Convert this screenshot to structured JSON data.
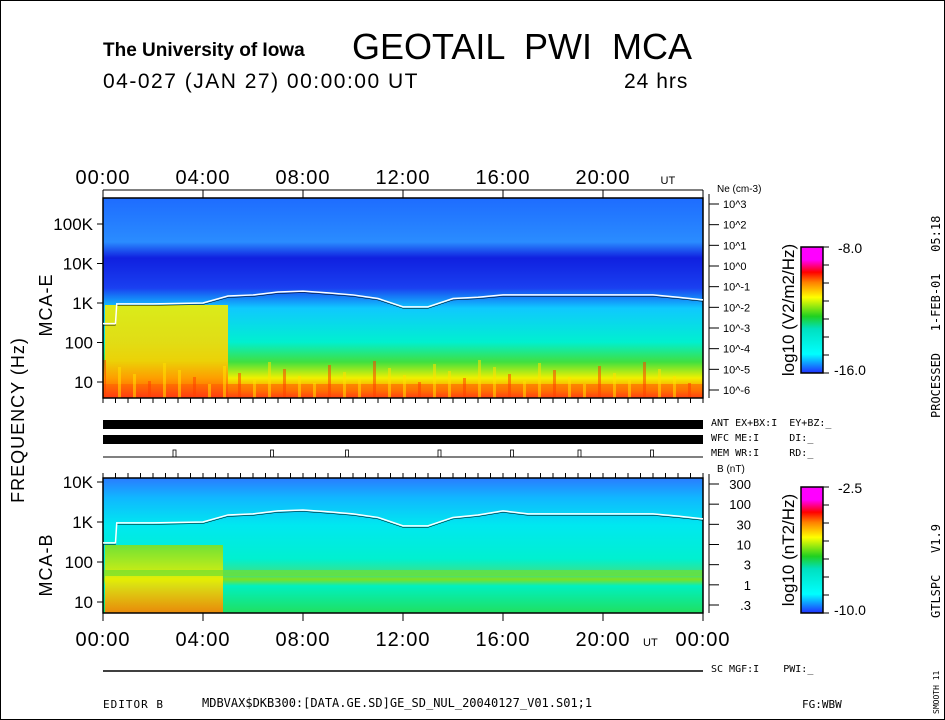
{
  "header": {
    "institution": "The University of Iowa",
    "title": "GEOTAIL  PWI  MCA",
    "date_line": "04-027 (JAN 27) 00:00:00 UT",
    "duration": "24 hrs"
  },
  "side": {
    "processed": "PROCESSED   1-FEB-01   05:18",
    "version": "GTLSPC   V1.9",
    "smooth": "SMOOTH 11"
  },
  "footer": {
    "editor": "EDITOR B",
    "file": "MDBVAX$DKB300:[DATA.GE.SD]GE_SD_NUL_20040127_V01.S01;1",
    "fg": "FG:WBW"
  },
  "status": {
    "ant": "ANT EX+BX:I  EY+BZ:_",
    "wfc": "WFC ME:I     DI:_",
    "mem": "MEM WR:I     RD:_",
    "sc": "SC MGF:I    PWI:_"
  },
  "chart_data": {
    "type": "heatmap",
    "x_unit": "UT",
    "x_ticks_hours": [
      0,
      4,
      8,
      12,
      16,
      20,
      24
    ],
    "x_tick_labels_top": [
      "00:00",
      "04:00",
      "08:00",
      "12:00",
      "16:00",
      "20:00"
    ],
    "x_tick_labels_bottom": [
      "00:00",
      "04:00",
      "08:00",
      "12:00",
      "16:00",
      "20:00",
      "00:00"
    ],
    "ut_label": "UT",
    "ylabel": "FREQUENCY (Hz)",
    "panels": [
      {
        "name": "MCA-E",
        "label": "MCA-E",
        "freq_range_hz": [
          5,
          400000
        ],
        "freq_ticks": [
          {
            "v": 100000,
            "label": "100K"
          },
          {
            "v": 10000,
            "label": "10K"
          },
          {
            "v": 1000,
            "label": "1K"
          },
          {
            "v": 100,
            "label": "100"
          },
          {
            "v": 10,
            "label": "10"
          }
        ],
        "right_axis_title": "Ne (cm-3)",
        "right_ticks": [
          "10^3",
          "10^2",
          "10^1",
          "10^0",
          "10^-1",
          "10^-2",
          "10^-3",
          "10^-4",
          "10^-5",
          "10^-6"
        ],
        "colorbar": {
          "label": "log10 (V2/m2/Hz)",
          "max": "-8.0",
          "min": "-16.0"
        },
        "line_hz": [
          [
            0,
            300
          ],
          [
            0.5,
            300
          ],
          [
            0.55,
            950
          ],
          [
            2,
            950
          ],
          [
            4,
            1000
          ],
          [
            5,
            1500
          ],
          [
            6,
            1600
          ],
          [
            7,
            1900
          ],
          [
            8,
            2000
          ],
          [
            9,
            1800
          ],
          [
            10,
            1600
          ],
          [
            11,
            1300
          ],
          [
            12,
            800
          ],
          [
            13,
            800
          ],
          [
            14,
            1300
          ],
          [
            15,
            1400
          ],
          [
            16,
            1600
          ],
          [
            18,
            1600
          ],
          [
            20,
            1600
          ],
          [
            22,
            1600
          ],
          [
            23,
            1400
          ],
          [
            24,
            1200
          ]
        ]
      },
      {
        "name": "MCA-B",
        "label": "MCA-B",
        "freq_range_hz": [
          5,
          12000
        ],
        "freq_ticks": [
          {
            "v": 10000,
            "label": "10K"
          },
          {
            "v": 1000,
            "label": "1K"
          },
          {
            "v": 100,
            "label": "100"
          },
          {
            "v": 10,
            "label": "10"
          }
        ],
        "right_axis_title": "B (nT)",
        "right_ticks": [
          "300",
          "100",
          "30",
          "10",
          "3",
          "1",
          ".3"
        ],
        "colorbar": {
          "label": "log10 (nT2/Hz)",
          "max": "-2.5",
          "min": "-10.0"
        },
        "line_hz": [
          [
            0,
            300
          ],
          [
            0.5,
            300
          ],
          [
            0.55,
            950
          ],
          [
            2,
            950
          ],
          [
            4,
            1000
          ],
          [
            5,
            1500
          ],
          [
            6,
            1600
          ],
          [
            7,
            1900
          ],
          [
            8,
            2000
          ],
          [
            9,
            1800
          ],
          [
            10,
            1600
          ],
          [
            11,
            1300
          ],
          [
            12,
            800
          ],
          [
            13,
            800
          ],
          [
            14,
            1300
          ],
          [
            15,
            1500
          ],
          [
            16,
            1900
          ],
          [
            17,
            1600
          ],
          [
            20,
            1600
          ],
          [
            22,
            1600
          ],
          [
            23,
            1400
          ],
          [
            24,
            1200
          ]
        ]
      }
    ],
    "colors": [
      "#2020ff",
      "#00a0ff",
      "#00ffff",
      "#00e000",
      "#ffff00",
      "#ff8000",
      "#ff0000",
      "#ff00ff"
    ]
  }
}
